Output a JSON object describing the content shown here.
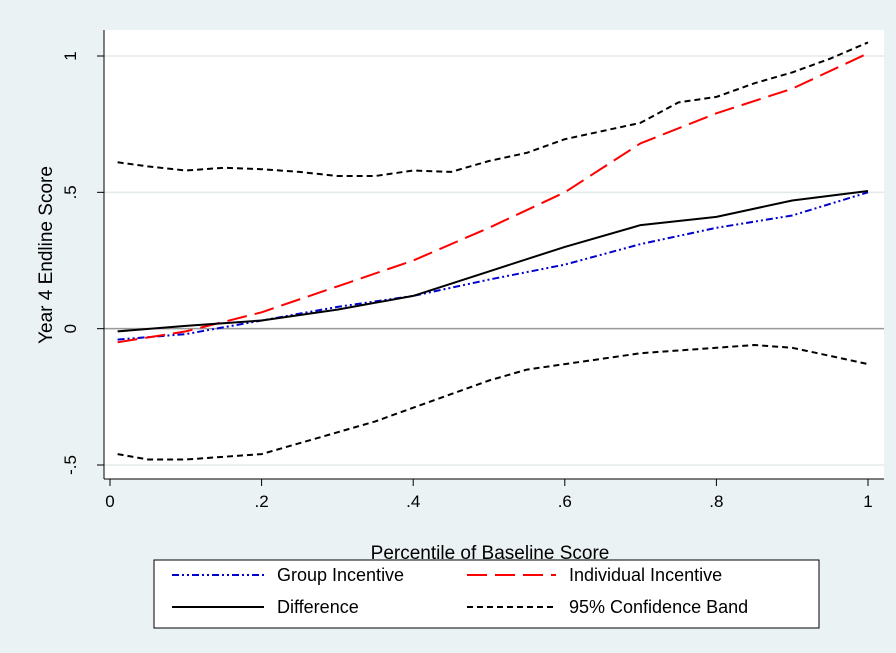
{
  "chart_data": {
    "type": "line",
    "title": "",
    "xlabel": "Percentile of Baseline Score",
    "ylabel": "Year 4 Endline Score",
    "xlim": [
      0,
      1
    ],
    "ylim": [
      -0.5,
      1
    ],
    "x_ticks": [
      0,
      0.2,
      0.4,
      0.6,
      0.8,
      1
    ],
    "x_tick_labels": [
      "0",
      ".2",
      ".4",
      ".6",
      ".8",
      "1"
    ],
    "y_ticks": [
      -0.5,
      0,
      0.5,
      1
    ],
    "y_tick_labels": [
      "-.5",
      "0",
      ".5",
      "1"
    ],
    "grid": "horizontal",
    "reference_line_y": 0,
    "legend_position": "bottom",
    "series": [
      {
        "name": "Group Incentive",
        "color": "#0000cc",
        "style": "dash-dot",
        "x": [
          0.01,
          0.1,
          0.2,
          0.3,
          0.4,
          0.5,
          0.6,
          0.7,
          0.8,
          0.9,
          1.0
        ],
        "y": [
          -0.04,
          -0.02,
          0.03,
          0.08,
          0.12,
          0.18,
          0.235,
          0.31,
          0.37,
          0.415,
          0.5
        ]
      },
      {
        "name": "Individual Incentive",
        "color": "#ff0000",
        "style": "long-dash",
        "x": [
          0.01,
          0.1,
          0.2,
          0.3,
          0.4,
          0.5,
          0.6,
          0.7,
          0.8,
          0.9,
          1.0
        ],
        "y": [
          -0.05,
          -0.01,
          0.06,
          0.155,
          0.25,
          0.37,
          0.5,
          0.68,
          0.79,
          0.88,
          1.01
        ]
      },
      {
        "name": "Difference",
        "color": "#000000",
        "style": "solid",
        "x": [
          0.01,
          0.1,
          0.2,
          0.3,
          0.4,
          0.5,
          0.6,
          0.7,
          0.8,
          0.9,
          1.0
        ],
        "y": [
          -0.01,
          0.01,
          0.03,
          0.07,
          0.12,
          0.21,
          0.3,
          0.38,
          0.41,
          0.47,
          0.505
        ]
      },
      {
        "name": "95% Confidence Band",
        "color": "#000000",
        "style": "short-dash",
        "x": [
          0.01,
          0.05,
          0.1,
          0.15,
          0.2,
          0.25,
          0.3,
          0.35,
          0.4,
          0.45,
          0.5,
          0.55,
          0.6,
          0.65,
          0.7,
          0.75,
          0.8,
          0.85,
          0.9,
          0.95,
          1.0
        ],
        "y": [
          0.61,
          0.595,
          0.58,
          0.59,
          0.585,
          0.575,
          0.56,
          0.56,
          0.58,
          0.575,
          0.615,
          0.645,
          0.695,
          0.725,
          0.755,
          0.83,
          0.85,
          0.9,
          0.94,
          0.99,
          1.05
        ]
      },
      {
        "name": "",
        "color": "#000000",
        "style": "short-dash",
        "x": [
          0.01,
          0.05,
          0.1,
          0.15,
          0.2,
          0.25,
          0.3,
          0.35,
          0.4,
          0.45,
          0.5,
          0.55,
          0.6,
          0.65,
          0.7,
          0.75,
          0.8,
          0.85,
          0.9,
          0.95,
          1.0
        ],
        "y": [
          -0.46,
          -0.48,
          -0.48,
          -0.47,
          -0.46,
          -0.42,
          -0.38,
          -0.34,
          -0.29,
          -0.24,
          -0.19,
          -0.15,
          -0.13,
          -0.11,
          -0.09,
          -0.08,
          -0.07,
          -0.06,
          -0.07,
          -0.1,
          -0.13
        ]
      }
    ],
    "legend": [
      {
        "label": "Group Incentive",
        "color": "#0000cc",
        "style": "dash-dot"
      },
      {
        "label": "Individual Incentive",
        "color": "#ff0000",
        "style": "long-dash"
      },
      {
        "label": "Difference",
        "color": "#000000",
        "style": "solid"
      },
      {
        "label": "95% Confidence Band",
        "color": "#000000",
        "style": "short-dash"
      }
    ]
  }
}
